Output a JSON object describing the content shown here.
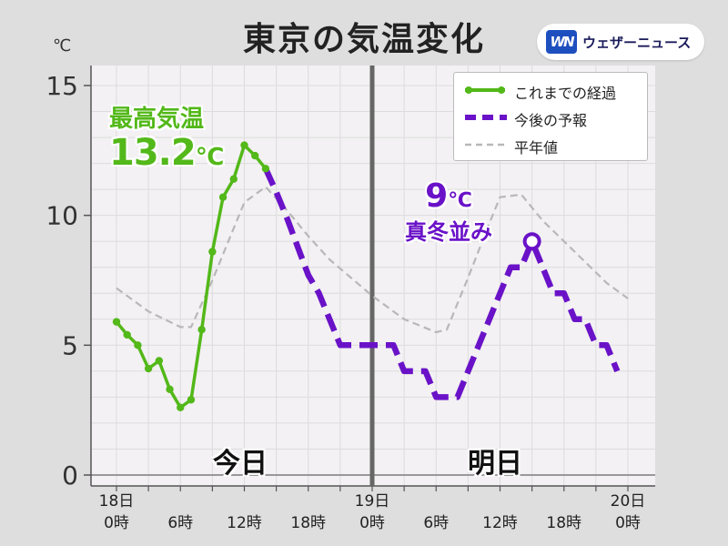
{
  "title": "東京の気温変化",
  "logo": {
    "mark": "WN",
    "text": "ウェザーニュース"
  },
  "unit": "℃",
  "annotations": {
    "max_label": "最高気温",
    "max_value": "13.2",
    "max_unit": "℃",
    "tomorrow_value": "9",
    "tomorrow_unit": "℃",
    "tomorrow_note": "真冬並み"
  },
  "day_labels": {
    "today": "今日",
    "tomorrow": "明日"
  },
  "colors": {
    "observed": "#53b819",
    "forecast": "#6a12c8",
    "normal": "#b8b8b8",
    "divider": "#666666",
    "plot_bg": "#f3f1f3"
  },
  "chart_data": {
    "type": "line",
    "title": "東京の気温変化",
    "ylabel": "℃",
    "ylim": [
      0,
      15
    ],
    "yticks": [
      0,
      5,
      10,
      15
    ],
    "xlim": [
      0,
      48
    ],
    "x_tick_labels": [
      {
        "x": 0,
        "top": "18日",
        "bottom": "0時"
      },
      {
        "x": 6,
        "top": "",
        "bottom": "6時"
      },
      {
        "x": 12,
        "top": "",
        "bottom": "12時"
      },
      {
        "x": 18,
        "top": "",
        "bottom": "18時"
      },
      {
        "x": 24,
        "top": "19日",
        "bottom": "0時"
      },
      {
        "x": 30,
        "top": "",
        "bottom": "6時"
      },
      {
        "x": 36,
        "top": "",
        "bottom": "12時"
      },
      {
        "x": 42,
        "top": "",
        "bottom": "18時"
      },
      {
        "x": 48,
        "top": "20日",
        "bottom": "0時"
      }
    ],
    "legend_position": "top-right",
    "series": [
      {
        "name": "これまでの経過",
        "style": "solid-markers",
        "x": [
          0,
          1,
          2,
          3,
          4,
          5,
          6,
          7,
          8,
          9,
          10,
          11,
          12,
          13,
          14
        ],
        "y": [
          5.9,
          5.4,
          5.0,
          4.1,
          4.4,
          3.3,
          2.6,
          2.9,
          5.6,
          8.6,
          10.7,
          11.4,
          12.7,
          12.3,
          11.8
        ]
      },
      {
        "name": "今後の予報",
        "style": "dashed",
        "x": [
          14,
          15,
          16,
          17,
          18,
          19,
          20,
          21,
          22,
          23,
          24,
          25,
          26,
          27,
          28,
          29,
          30,
          31,
          32,
          33,
          34,
          35,
          36,
          37,
          38,
          39,
          40,
          41,
          42,
          43,
          44,
          45,
          46,
          47
        ],
        "y": [
          11.8,
          10.9,
          9.9,
          8.8,
          7.7,
          7.0,
          6.0,
          5.0,
          5.0,
          5.0,
          5.0,
          5.0,
          5.0,
          4.0,
          4.0,
          4.0,
          3.0,
          3.0,
          3.0,
          4.0,
          5.0,
          6.0,
          7.0,
          8.0,
          8.0,
          9.0,
          8.0,
          7.0,
          7.0,
          6.0,
          6.0,
          5.0,
          5.0,
          4.0
        ]
      },
      {
        "name": "平年値",
        "style": "thin-dashed",
        "x": [
          0,
          3,
          6,
          7,
          9,
          11,
          12,
          14,
          16,
          18,
          20,
          22,
          24,
          27,
          30,
          31,
          33,
          35,
          36,
          38,
          40,
          42,
          44,
          46,
          48
        ],
        "y": [
          7.2,
          6.3,
          5.7,
          5.7,
          7.5,
          9.5,
          10.5,
          11.1,
          10.2,
          9.2,
          8.3,
          7.6,
          6.9,
          6.0,
          5.5,
          5.6,
          7.6,
          9.7,
          10.7,
          10.8,
          9.8,
          9.0,
          8.2,
          7.4,
          6.8
        ]
      }
    ],
    "markers": [
      {
        "series": "今後の予報",
        "x": 39,
        "y": 9.0,
        "shape": "open-circle"
      }
    ]
  }
}
